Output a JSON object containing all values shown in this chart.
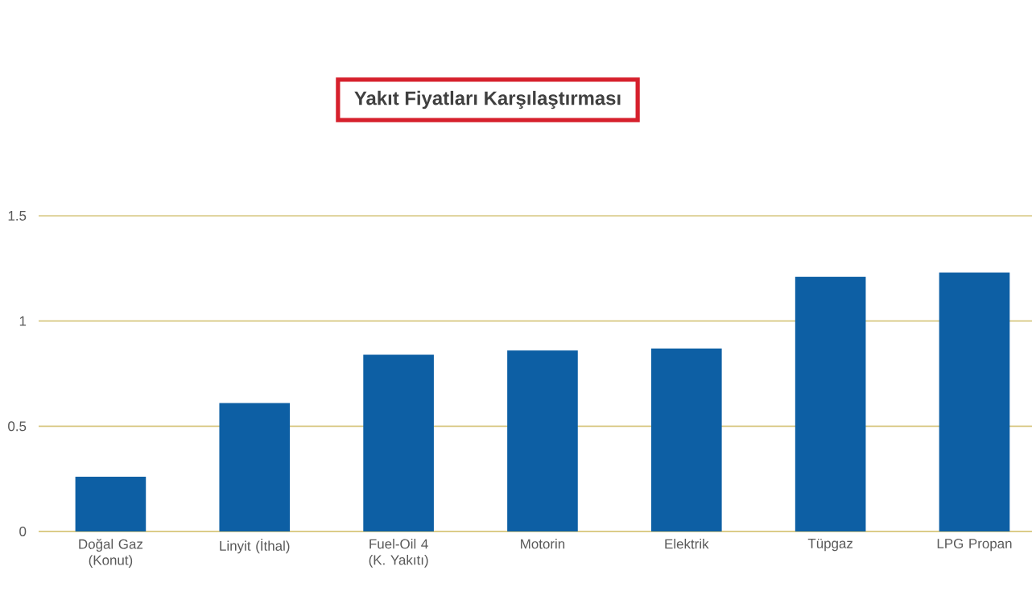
{
  "chart_data": {
    "type": "bar",
    "title": "Yakıt Fiyatları Karşılaştırması",
    "categories": [
      "Doğal Gaz (Konut)",
      "Linyit (İthal)",
      "Fuel-Oil 4 (K. Yakıtı)",
      "Motorin",
      "Elektrik",
      "Tüpgaz",
      "LPG Propan"
    ],
    "values": [
      0.26,
      0.61,
      0.84,
      0.86,
      0.87,
      1.21,
      1.23
    ],
    "color": "#0d5fa4",
    "ylim": [
      0,
      1.5
    ],
    "yticks": [
      0,
      0.5,
      1,
      1.5
    ],
    "grid": "y"
  }
}
